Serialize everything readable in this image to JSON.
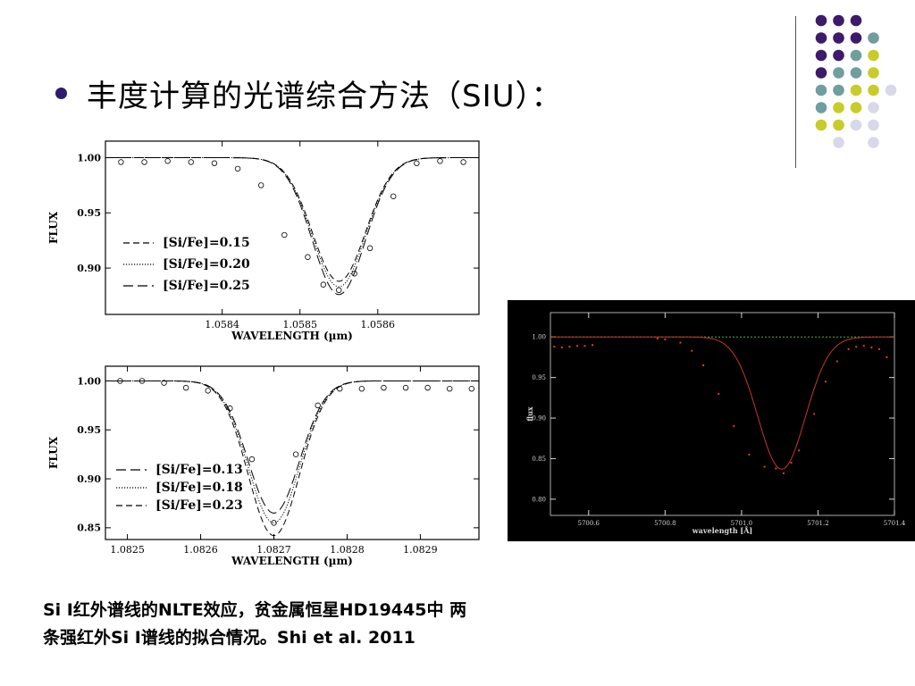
{
  "slide": {
    "title": "丰度计算的光谱综合方法（SIU）：",
    "caption_line1": "Si I红外谱线的NLTE效应，贫金属恒星HD19445中 两",
    "caption_line2": "条强红外Si I谱线的拟合情况。Shi et al. 2011"
  },
  "decoration": {
    "dot_colors": {
      "purple": "#3d1a6b",
      "teal": "#6f9e9e",
      "lime": "#c8cc28",
      "lavender": "#d8d8ea"
    },
    "dot_grid": [
      [
        "purple",
        "purple",
        "purple",
        null
      ],
      [
        "purple",
        "purple",
        "purple",
        "teal"
      ],
      [
        "purple",
        "purple",
        "teal",
        "lime"
      ],
      [
        "purple",
        "teal",
        "teal",
        "lime"
      ],
      [
        "teal",
        "teal",
        "lime",
        "lime",
        "lavender"
      ],
      [
        "teal",
        "lime",
        "lime",
        "lavender"
      ],
      [
        "lime",
        "lime",
        "lavender",
        "lavender"
      ],
      [
        null,
        "lavender",
        null,
        "lavender"
      ]
    ]
  },
  "chart_data": [
    {
      "type": "line",
      "xlabel": "WAVELENGTH (µm)",
      "ylabel": "FLUX",
      "xlim": [
        1.05825,
        1.05873
      ],
      "ylim": [
        0.858,
        1.015
      ],
      "x_ticks": [
        "1.0584",
        "1.0585",
        "1.0586"
      ],
      "x_tick_values": [
        1.0584,
        1.0585,
        1.0586
      ],
      "y_ticks": [
        "1.00",
        "0.95",
        "0.90"
      ],
      "y_tick_values": [
        1.0,
        0.95,
        0.9
      ],
      "line_center": 1.05855,
      "series": [
        {
          "name": "[Si/Fe]=0.15",
          "style": "dashed",
          "depth": 0.112,
          "sigma": 3.4e-05
        },
        {
          "name": "[Si/Fe]=0.20",
          "style": "dotted",
          "depth": 0.117,
          "sigma": 3.4e-05
        },
        {
          "name": "[Si/Fe]=0.25",
          "style": "longdash",
          "depth": 0.124,
          "sigma": 3.4e-05
        }
      ],
      "observed": {
        "x": [
          1.05827,
          1.0583,
          1.05833,
          1.05836,
          1.05839,
          1.05842,
          1.05845,
          1.05848,
          1.05851,
          1.05853,
          1.05855,
          1.05857,
          1.05859,
          1.05862,
          1.05865,
          1.05868,
          1.05871
        ],
        "y": [
          0.996,
          0.996,
          0.997,
          0.996,
          0.995,
          0.99,
          0.975,
          0.93,
          0.91,
          0.885,
          0.88,
          0.895,
          0.918,
          0.965,
          0.995,
          0.997,
          0.996
        ]
      }
    },
    {
      "type": "line",
      "xlabel": "WAVELENGTH (µm)",
      "ylabel": "FLUX",
      "xlim": [
        1.08247,
        1.08298
      ],
      "ylim": [
        0.838,
        1.015
      ],
      "x_ticks": [
        "1.0825",
        "1.0826",
        "1.0827",
        "1.0828",
        "1.0829"
      ],
      "x_tick_values": [
        1.0825,
        1.0826,
        1.0827,
        1.0828,
        1.0829
      ],
      "y_ticks": [
        "1.00",
        "0.95",
        "0.90",
        "0.85"
      ],
      "y_tick_values": [
        1.0,
        0.95,
        0.9,
        0.85
      ],
      "line_center": 1.0827,
      "series": [
        {
          "name": "[Si/Fe]=0.13",
          "style": "longdash",
          "depth": 0.135,
          "sigma": 3.5e-05
        },
        {
          "name": "[Si/Fe]=0.18",
          "style": "dotted",
          "depth": 0.145,
          "sigma": 3.5e-05
        },
        {
          "name": "[Si/Fe]=0.23",
          "style": "dashed",
          "depth": 0.158,
          "sigma": 3.5e-05
        }
      ],
      "observed": {
        "x": [
          1.08249,
          1.08252,
          1.08255,
          1.08258,
          1.08261,
          1.08264,
          1.08267,
          1.0827,
          1.08273,
          1.08276,
          1.08279,
          1.08282,
          1.08285,
          1.08288,
          1.08291,
          1.08294,
          1.08297
        ],
        "y": [
          1.0,
          1.0,
          0.998,
          0.993,
          0.99,
          0.972,
          0.92,
          0.855,
          0.925,
          0.975,
          0.992,
          0.992,
          0.993,
          0.993,
          0.993,
          0.992,
          0.992
        ]
      }
    },
    {
      "type": "line",
      "xlabel": "wavelength [Å]",
      "ylabel": "flux",
      "xlim": [
        5700.5,
        5701.4
      ],
      "ylim": [
        0.78,
        1.03
      ],
      "x_ticks": [
        "5700.6",
        "5700.8",
        "5701.0",
        "5701.2",
        "5701.4"
      ],
      "x_tick_values": [
        5700.6,
        5700.8,
        5701.0,
        5701.2,
        5701.4
      ],
      "y_ticks": [
        "1.00",
        "0.95",
        "0.90",
        "0.85",
        "0.80"
      ],
      "y_tick_values": [
        1.0,
        0.95,
        0.9,
        0.85,
        0.8
      ],
      "colors": {
        "background": "#000000",
        "model": "#c0392b",
        "points": "#e23b2e",
        "continuum": "#4caf50",
        "axes": "#d8d8d8"
      },
      "line_center": 5701.105,
      "series": [
        {
          "name": "",
          "style": "solid",
          "depth": 0.163,
          "sigma": 0.062
        }
      ],
      "observed": {
        "x": [
          5700.51,
          5700.53,
          5700.55,
          5700.57,
          5700.59,
          5700.61,
          5700.78,
          5700.8,
          5700.84,
          5700.87,
          5700.9,
          5700.94,
          5700.98,
          5701.02,
          5701.06,
          5701.09,
          5701.11,
          5701.13,
          5701.15,
          5701.19,
          5701.22,
          5701.25,
          5701.28,
          5701.3,
          5701.32,
          5701.34,
          5701.36,
          5701.38
        ],
        "y": [
          0.988,
          0.987,
          0.988,
          0.989,
          0.989,
          0.99,
          0.998,
          0.997,
          0.993,
          0.983,
          0.965,
          0.93,
          0.89,
          0.855,
          0.84,
          0.838,
          0.832,
          0.845,
          0.86,
          0.905,
          0.945,
          0.97,
          0.985,
          0.988,
          0.989,
          0.987,
          0.985,
          0.975
        ]
      }
    }
  ]
}
